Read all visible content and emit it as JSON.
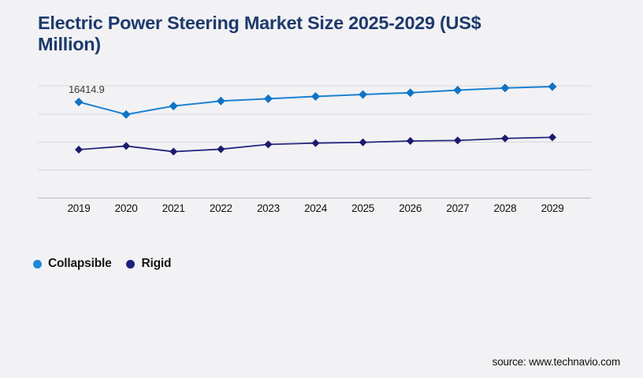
{
  "title": {
    "text": "Electric Power Steering Market Size 2025-2029 (US$\nMillion)",
    "color": "#1e3a6d"
  },
  "chart_data": {
    "type": "line",
    "title": "Electric Power Steering Market Size 2025-2029 (US$ Million)",
    "x": [
      2019,
      2020,
      2021,
      2022,
      2023,
      2024,
      2025,
      2026,
      2027,
      2028,
      2029
    ],
    "series": [
      {
        "name": "Collapsible",
        "color": "#1a82d2",
        "marker_color": "#1173c4",
        "marker": "diamond",
        "values": [
          16414.9,
          14280,
          15720,
          16580,
          16970,
          17360,
          17690,
          18000,
          18430,
          18800,
          19040
        ]
      },
      {
        "name": "Rigid",
        "color": "#26267e",
        "marker_color": "#1b1b70",
        "marker": "diamond",
        "values": [
          8270,
          8890,
          7930,
          8350,
          9170,
          9390,
          9520,
          9750,
          9840,
          10190,
          10380
        ]
      }
    ],
    "point_labels": [
      {
        "series": "Collapsible",
        "x": 2019,
        "text": "16414.9"
      }
    ],
    "xlabel": "",
    "ylabel": "",
    "ylim": [
      0,
      20500
    ],
    "y_tick_labels_shown": false,
    "grid": true,
    "legend_position": "bottom-left",
    "units": "US$ Million"
  },
  "legend": {
    "items": [
      {
        "label": "Collapsible",
        "color": "#1e88d8"
      },
      {
        "label": "Rigid",
        "color": "#1e1e7e"
      }
    ]
  },
  "source": {
    "text": "source: www.technavio.com"
  },
  "colors": {
    "background": "#f2f2f4",
    "gridline": "#d8d8db",
    "axis_line": "#c3c3c7",
    "tick_label": "#111111"
  }
}
